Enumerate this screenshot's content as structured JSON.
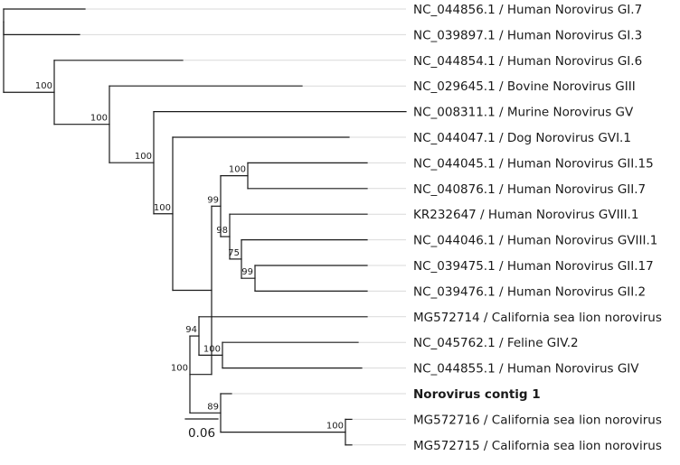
{
  "tree": {
    "leaves": [
      {
        "id": "gi7",
        "label": "NC_044856.1 / Human Norovirus GI.7"
      },
      {
        "id": "gi3",
        "label": "NC_039897.1 / Human Norovirus GI.3"
      },
      {
        "id": "gi6",
        "label": "NC_044854.1 / Human Norovirus GI.6"
      },
      {
        "id": "giii",
        "label": "NC_029645.1 / Bovine Norovirus GIII"
      },
      {
        "id": "gv",
        "label": "NC_008311.1 / Murine Norovirus GV"
      },
      {
        "id": "gvi1",
        "label": "NC_044047.1 / Dog Norovirus GVI.1"
      },
      {
        "id": "gii15",
        "label": "NC_044045.1 / Human Norovirus GII.15"
      },
      {
        "id": "gii7",
        "label": "NC_040876.1 / Human Norovirus GII.7"
      },
      {
        "id": "kr232647",
        "label": "KR232647 / Human Norovirus GVIII.1"
      },
      {
        "id": "gviii1",
        "label": "NC_044046.1 / Human Norovirus GVIII.1"
      },
      {
        "id": "gii17",
        "label": "NC_039475.1 / Human Norovirus GII.17"
      },
      {
        "id": "gii2",
        "label": "NC_039476.1 / Human Norovirus GII.2"
      },
      {
        "id": "mg572714",
        "label": "MG572714 / California sea lion norovirus"
      },
      {
        "id": "giv2",
        "label": "NC_045762.1 / Feline GIV.2"
      },
      {
        "id": "giv",
        "label": "NC_044855.1 / Human Norovirus GIV"
      },
      {
        "id": "contig1",
        "label": "Norovirus contig 1",
        "bold": true
      },
      {
        "id": "mg572716",
        "label": "MG572716 / California sea lion norovirus"
      },
      {
        "id": "mg572715",
        "label": "MG572715 / California sea lion norovirus"
      }
    ],
    "support_values": [
      {
        "node": "n_root_gi6",
        "value": "100"
      },
      {
        "node": "n_giii_rest",
        "value": "100"
      },
      {
        "node": "n_gv_rest",
        "value": "100"
      },
      {
        "node": "n_gvi_rest",
        "value": "100"
      },
      {
        "node": "n_gii_big",
        "value": "99"
      },
      {
        "node": "n_gii15_gii7",
        "value": "100"
      },
      {
        "node": "n_kr_rest",
        "value": "98"
      },
      {
        "node": "n_gviii_rest",
        "value": "75"
      },
      {
        "node": "n_gii17_gii2",
        "value": "99"
      },
      {
        "node": "n_gii_giv",
        "value": "100"
      },
      {
        "node": "n_giv_clade",
        "value": "94"
      },
      {
        "node": "n_feline_giv",
        "value": "100"
      },
      {
        "node": "n_contig_clade",
        "value": "89"
      },
      {
        "node": "n_mg_pair",
        "value": "100"
      }
    ],
    "scale_bar": {
      "value": 0.06,
      "label": "0.06"
    }
  }
}
